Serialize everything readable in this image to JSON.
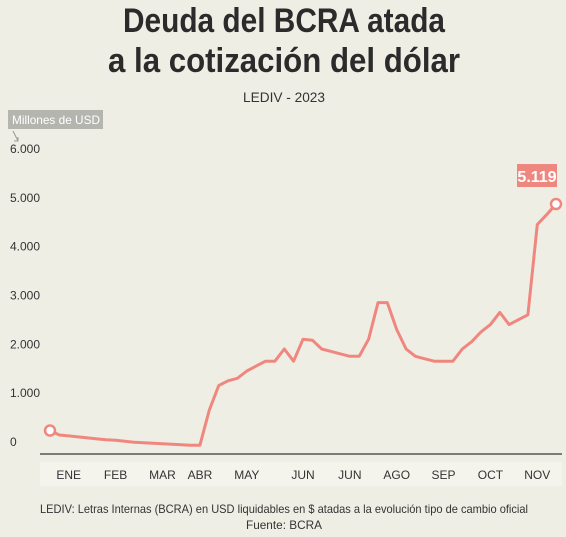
{
  "chart_data": {
    "type": "line",
    "title": [
      "Deuda del BCRA atada",
      "a la cotización del dólar"
    ],
    "subtitle": "LEDIV - 2023",
    "y_axis_label": "Millones de USD",
    "note": "LEDIV: Letras Internas (BCRA) en USD liquidables en $ atadas a la evolución tipo de cambio oficial",
    "source": "Fuente: BCRA",
    "categories": [
      null,
      null,
      "ENE",
      null,
      null,
      null,
      null,
      "FEB",
      null,
      null,
      null,
      null,
      "MAR",
      null,
      null,
      null,
      "ABR",
      null,
      null,
      null,
      null,
      "MAY",
      null,
      null,
      null,
      null,
      null,
      "JUN",
      null,
      null,
      null,
      null,
      "JUN",
      null,
      null,
      null,
      null,
      "AGO",
      null,
      null,
      null,
      null,
      "SEP",
      null,
      null,
      null,
      null,
      "OCT",
      null,
      null,
      null,
      null,
      "NOV",
      null,
      null
    ],
    "values": [
      480,
      390,
      370,
      350,
      330,
      310,
      290,
      280,
      260,
      240,
      230,
      220,
      210,
      200,
      190,
      180,
      180,
      900,
      1400,
      1500,
      1550,
      1700,
      1800,
      1900,
      1900,
      2150,
      1900,
      2350,
      2330,
      2150,
      2100,
      2050,
      2000,
      2000,
      2350,
      3100,
      3100,
      2550,
      2150,
      2000,
      1950,
      1900,
      1900,
      1900,
      2150,
      2300,
      2500,
      2650,
      2900,
      2650,
      2750,
      2850,
      4700,
      4900,
      5119
    ],
    "value_labels": [
      null,
      null,
      null,
      null,
      null,
      null,
      null,
      null,
      null,
      null,
      null,
      null,
      null,
      null,
      null,
      null,
      null,
      null,
      null,
      null,
      null,
      null,
      null,
      null,
      null,
      null,
      null,
      null,
      null,
      null,
      null,
      null,
      null,
      null,
      null,
      null,
      null,
      null,
      null,
      null,
      null,
      null,
      null,
      null,
      null,
      null,
      null,
      null,
      null,
      null,
      null,
      null,
      null,
      null,
      "5.119"
    ],
    "color": "#f0877f",
    "ylim": [
      0,
      6000
    ],
    "yticks": [
      0,
      {
        "value": 1000,
        "label": "1.000"
      },
      {
        "value": 2000,
        "label": "2.000"
      },
      {
        "value": 3000,
        "label": "3.000"
      },
      {
        "value": 4000,
        "label": "4.000"
      },
      {
        "value": 5000,
        "label": "5.000"
      },
      {
        "value": 6000,
        "label": "6.000"
      }
    ],
    "grid": false
  }
}
